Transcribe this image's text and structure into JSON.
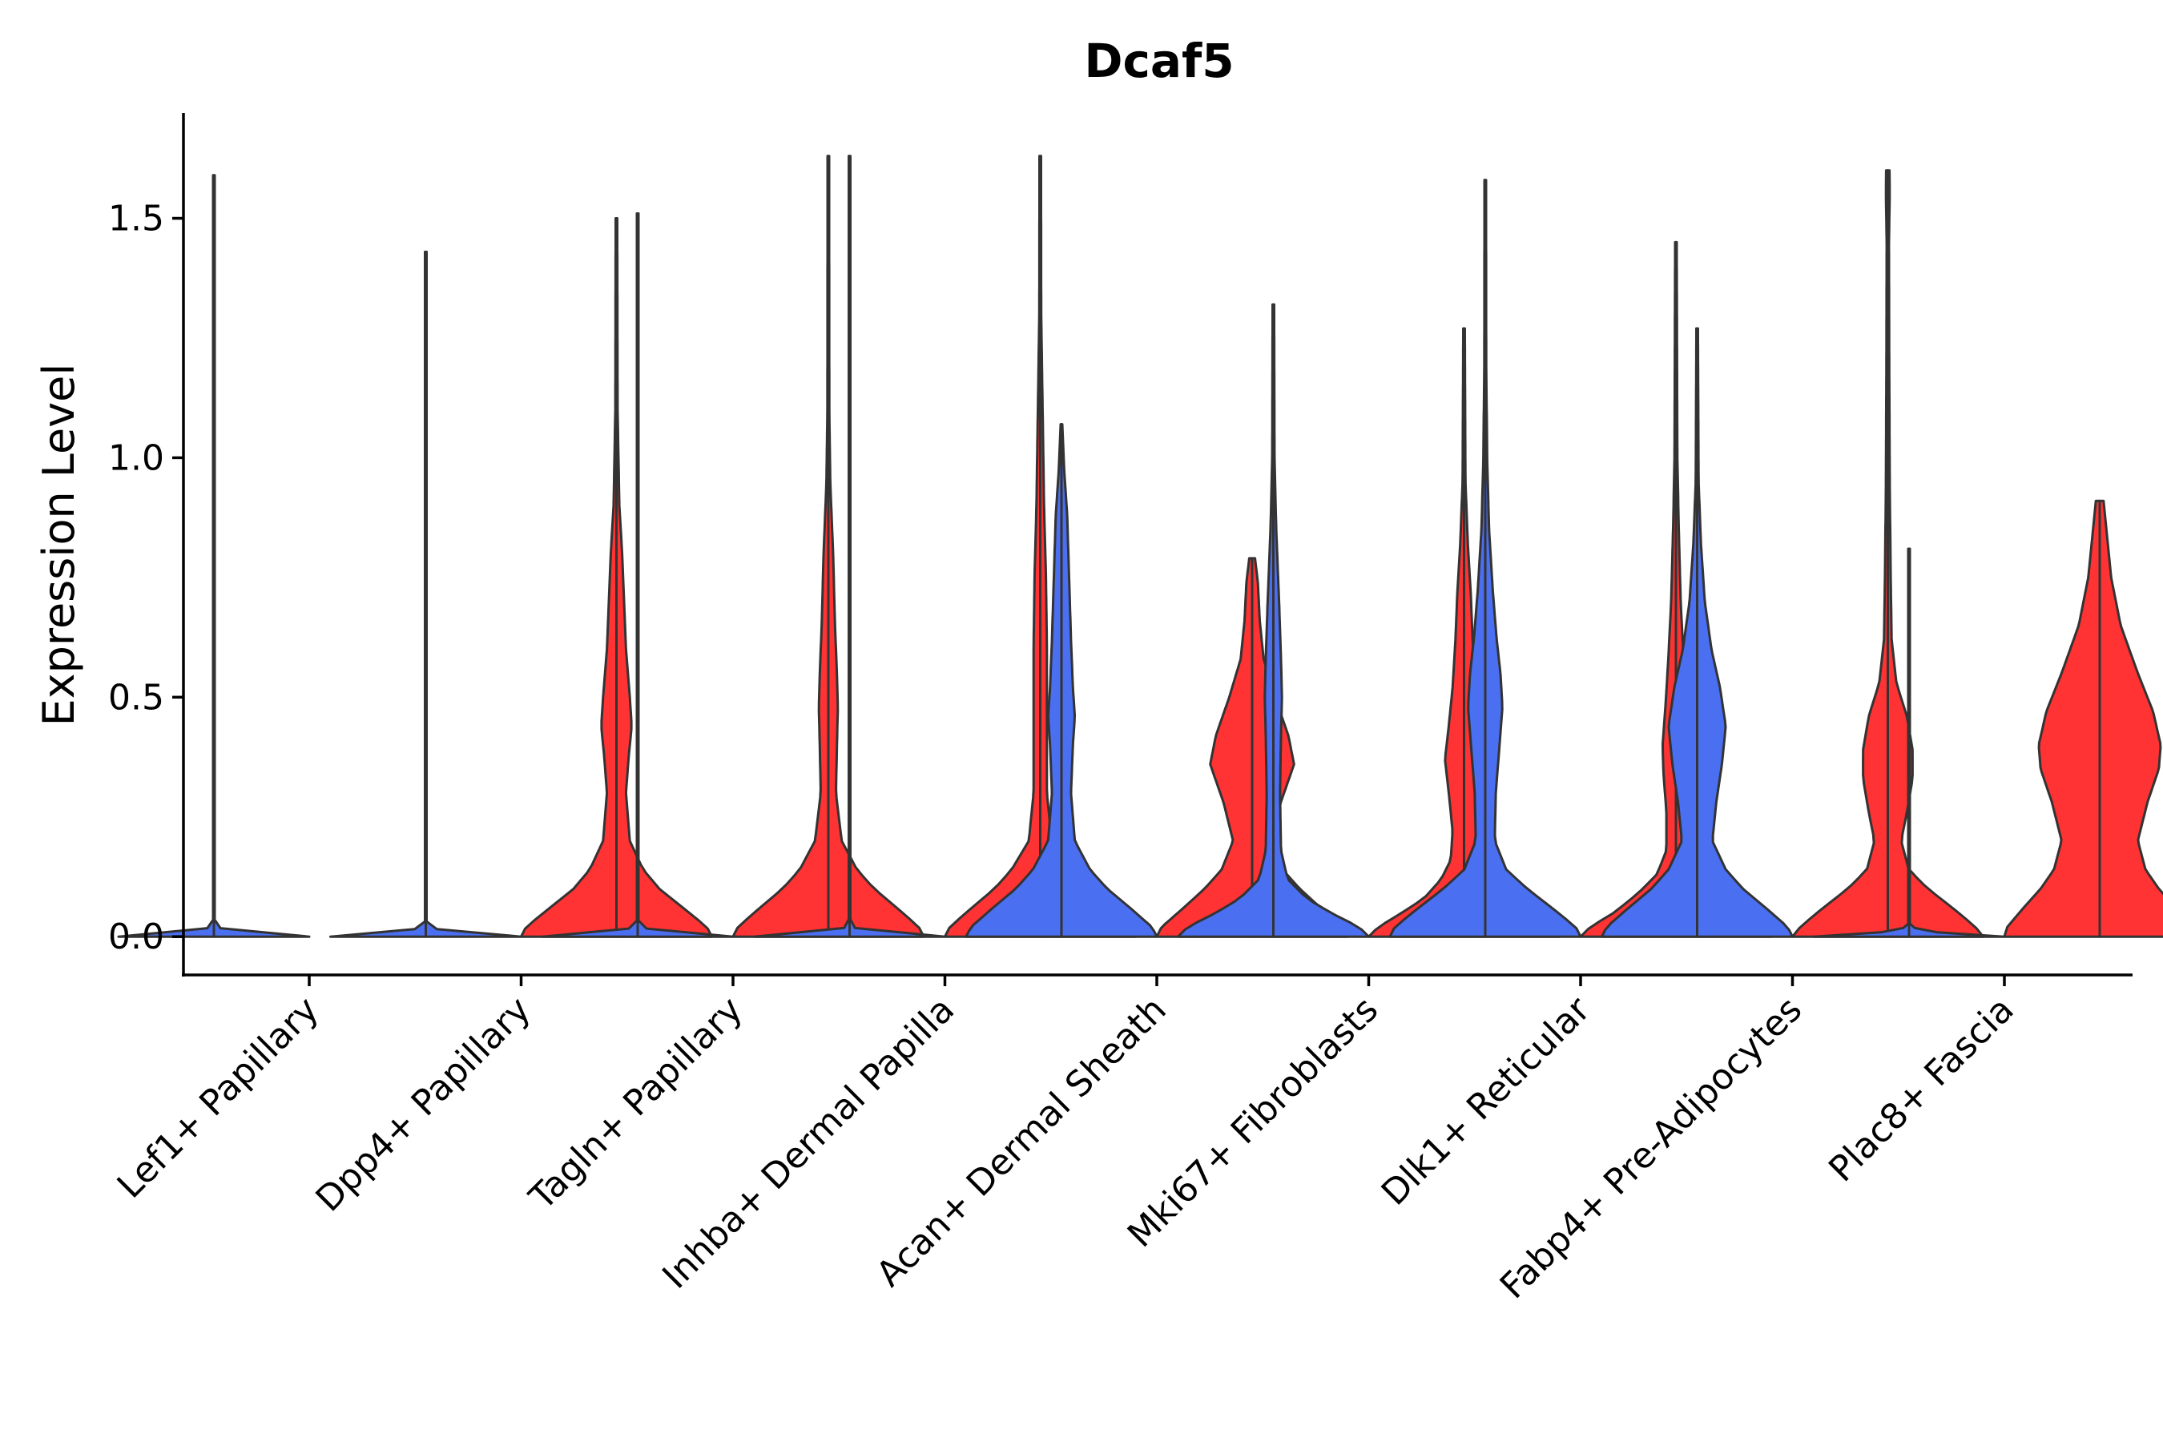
{
  "chart_data": {
    "type": "violin",
    "title": "Dcaf5",
    "xlabel": "",
    "ylabel": "Expression Level",
    "ylim": [
      -0.08,
      1.72
    ],
    "yticks": [
      0.0,
      0.5,
      1.0,
      1.5
    ],
    "ytick_labels": [
      "0.0",
      "0.5",
      "1.0",
      "1.5"
    ],
    "split_colors": {
      "left": "#4a6ff0",
      "right": "#ff3333"
    },
    "categories": [
      "Lef1+ Papillary",
      "Dpp4+ Papillary",
      "Tagln+ Papillary",
      "Inhba+ Dermal Papilla",
      "Acan+ Dermal Sheath",
      "Mki67+ Fibroblasts",
      "Dlk1+ Reticular",
      "Fabp4+ Pre-Adipocytes",
      "Plac8+ Fascia"
    ],
    "groups": [
      {
        "left": {
          "max": 1.59,
          "profile": [
            [
              0,
              1
            ],
            [
              0.005,
              0.4
            ],
            [
              0.02,
              0.008
            ],
            [
              0.6,
              0.008
            ],
            [
              1.59,
              0.008
            ]
          ]
        },
        "right": null
      },
      {
        "left": {
          "max": 1.43,
          "profile": [
            [
              0,
              1
            ],
            [
              0.005,
              0.4
            ],
            [
              0.02,
              0.008
            ],
            [
              0.5,
              0.008
            ],
            [
              1.43,
              0.008
            ]
          ]
        },
        "right": {
          "max": 1.5,
          "profile": [
            [
              0,
              1
            ],
            [
              0.02,
              0.95
            ],
            [
              0.06,
              0.7
            ],
            [
              0.1,
              0.45
            ],
            [
              0.14,
              0.28
            ],
            [
              0.2,
              0.14
            ],
            [
              0.3,
              0.1
            ],
            [
              0.38,
              0.13
            ],
            [
              0.44,
              0.16
            ],
            [
              0.5,
              0.14
            ],
            [
              0.6,
              0.1
            ],
            [
              0.7,
              0.08
            ],
            [
              0.8,
              0.06
            ],
            [
              0.9,
              0.03
            ],
            [
              1.1,
              0.012
            ],
            [
              1.5,
              0.008
            ]
          ]
        }
      },
      {
        "left": {
          "max": 1.51,
          "profile": [
            [
              0,
              1
            ],
            [
              0.005,
              0.4
            ],
            [
              0.02,
              0.008
            ],
            [
              0.5,
              0.008
            ],
            [
              1.51,
              0.008
            ]
          ]
        },
        "right": {
          "max": 1.63,
          "profile": [
            [
              0,
              1
            ],
            [
              0.02,
              0.95
            ],
            [
              0.06,
              0.72
            ],
            [
              0.1,
              0.48
            ],
            [
              0.14,
              0.3
            ],
            [
              0.2,
              0.14
            ],
            [
              0.3,
              0.08
            ],
            [
              0.4,
              0.09
            ],
            [
              0.48,
              0.1
            ],
            [
              0.55,
              0.09
            ],
            [
              0.65,
              0.07
            ],
            [
              0.8,
              0.05
            ],
            [
              0.95,
              0.02
            ],
            [
              1.1,
              0.01
            ],
            [
              1.63,
              0.008
            ]
          ]
        }
      },
      {
        "left": {
          "max": 1.63,
          "profile": [
            [
              0,
              1
            ],
            [
              0.005,
              0.4
            ],
            [
              0.02,
              0.008
            ],
            [
              0.5,
              0.008
            ],
            [
              1.63,
              0.008
            ]
          ]
        },
        "right": {
          "max": 1.63,
          "profile": [
            [
              0,
              1
            ],
            [
              0.02,
              0.95
            ],
            [
              0.06,
              0.72
            ],
            [
              0.1,
              0.48
            ],
            [
              0.14,
              0.3
            ],
            [
              0.2,
              0.12
            ],
            [
              0.3,
              0.07
            ],
            [
              0.45,
              0.07
            ],
            [
              0.6,
              0.07
            ],
            [
              0.75,
              0.06
            ],
            [
              0.9,
              0.04
            ],
            [
              1.1,
              0.025
            ],
            [
              1.3,
              0.01
            ],
            [
              1.63,
              0.008
            ]
          ]
        }
      },
      {
        "left": {
          "max": 1.07,
          "profile": [
            [
              0,
              1
            ],
            [
              0.02,
              0.95
            ],
            [
              0.06,
              0.72
            ],
            [
              0.1,
              0.48
            ],
            [
              0.14,
              0.3
            ],
            [
              0.2,
              0.14
            ],
            [
              0.3,
              0.1
            ],
            [
              0.4,
              0.12
            ],
            [
              0.46,
              0.14
            ],
            [
              0.52,
              0.12
            ],
            [
              0.62,
              0.1
            ],
            [
              0.75,
              0.08
            ],
            [
              0.88,
              0.06
            ],
            [
              0.97,
              0.03
            ],
            [
              1.07,
              0.008
            ]
          ]
        },
        "right": {
          "max": 0.79,
          "profile": [
            [
              0,
              1
            ],
            [
              0.02,
              0.95
            ],
            [
              0.06,
              0.72
            ],
            [
              0.1,
              0.5
            ],
            [
              0.14,
              0.32
            ],
            [
              0.2,
              0.2
            ],
            [
              0.28,
              0.3
            ],
            [
              0.36,
              0.44
            ],
            [
              0.42,
              0.38
            ],
            [
              0.5,
              0.24
            ],
            [
              0.58,
              0.12
            ],
            [
              0.66,
              0.08
            ],
            [
              0.74,
              0.06
            ],
            [
              0.79,
              0.03
            ]
          ]
        }
      },
      {
        "left": {
          "max": 1.32,
          "profile": [
            [
              0,
              1
            ],
            [
              0.02,
              0.9
            ],
            [
              0.05,
              0.6
            ],
            [
              0.08,
              0.35
            ],
            [
              0.12,
              0.15
            ],
            [
              0.18,
              0.08
            ],
            [
              0.3,
              0.07
            ],
            [
              0.42,
              0.08
            ],
            [
              0.5,
              0.09
            ],
            [
              0.58,
              0.08
            ],
            [
              0.7,
              0.06
            ],
            [
              0.85,
              0.03
            ],
            [
              1.0,
              0.012
            ],
            [
              1.32,
              0.008
            ]
          ]
        },
        "right": {
          "max": 1.27,
          "profile": [
            [
              0,
              1
            ],
            [
              0.02,
              0.9
            ],
            [
              0.05,
              0.65
            ],
            [
              0.08,
              0.42
            ],
            [
              0.12,
              0.24
            ],
            [
              0.16,
              0.14
            ],
            [
              0.22,
              0.12
            ],
            [
              0.3,
              0.16
            ],
            [
              0.37,
              0.2
            ],
            [
              0.44,
              0.16
            ],
            [
              0.52,
              0.12
            ],
            [
              0.62,
              0.09
            ],
            [
              0.72,
              0.07
            ],
            [
              0.82,
              0.04
            ],
            [
              0.95,
              0.015
            ],
            [
              1.27,
              0.008
            ]
          ]
        }
      },
      {
        "left": {
          "max": 1.58,
          "profile": [
            [
              0,
              1
            ],
            [
              0.02,
              0.95
            ],
            [
              0.06,
              0.7
            ],
            [
              0.1,
              0.44
            ],
            [
              0.14,
              0.22
            ],
            [
              0.2,
              0.1
            ],
            [
              0.3,
              0.11
            ],
            [
              0.4,
              0.15
            ],
            [
              0.48,
              0.18
            ],
            [
              0.55,
              0.16
            ],
            [
              0.62,
              0.12
            ],
            [
              0.72,
              0.08
            ],
            [
              0.85,
              0.04
            ],
            [
              1.0,
              0.02
            ],
            [
              1.2,
              0.01
            ],
            [
              1.58,
              0.008
            ]
          ]
        },
        "right": {
          "max": 1.45,
          "profile": [
            [
              0,
              1
            ],
            [
              0.02,
              0.9
            ],
            [
              0.05,
              0.65
            ],
            [
              0.09,
              0.4
            ],
            [
              0.13,
              0.2
            ],
            [
              0.18,
              0.1
            ],
            [
              0.26,
              0.1
            ],
            [
              0.34,
              0.13
            ],
            [
              0.4,
              0.14
            ],
            [
              0.48,
              0.11
            ],
            [
              0.58,
              0.08
            ],
            [
              0.7,
              0.05
            ],
            [
              0.85,
              0.03
            ],
            [
              1.0,
              0.015
            ],
            [
              1.45,
              0.008
            ]
          ]
        }
      },
      {
        "left": {
          "max": 1.27,
          "profile": [
            [
              0,
              1
            ],
            [
              0.02,
              0.95
            ],
            [
              0.06,
              0.72
            ],
            [
              0.1,
              0.48
            ],
            [
              0.14,
              0.3
            ],
            [
              0.2,
              0.16
            ],
            [
              0.28,
              0.2
            ],
            [
              0.36,
              0.26
            ],
            [
              0.44,
              0.3
            ],
            [
              0.52,
              0.24
            ],
            [
              0.6,
              0.15
            ],
            [
              0.7,
              0.08
            ],
            [
              0.82,
              0.04
            ],
            [
              0.95,
              0.015
            ],
            [
              1.27,
              0.008
            ]
          ]
        },
        "right": {
          "max": 1.6,
          "profile": [
            [
              0,
              1
            ],
            [
              0.02,
              0.92
            ],
            [
              0.06,
              0.68
            ],
            [
              0.1,
              0.42
            ],
            [
              0.14,
              0.22
            ],
            [
              0.2,
              0.14
            ],
            [
              0.26,
              0.2
            ],
            [
              0.33,
              0.26
            ],
            [
              0.39,
              0.26
            ],
            [
              0.46,
              0.2
            ],
            [
              0.53,
              0.09
            ],
            [
              0.62,
              0.04
            ],
            [
              0.75,
              0.03
            ],
            [
              0.95,
              0.02
            ],
            [
              1.2,
              0.015
            ],
            [
              1.45,
              0.012
            ],
            [
              1.55,
              0.02
            ],
            [
              1.6,
              0.018
            ]
          ]
        }
      },
      {
        "left": {
          "max": 0.81,
          "profile": [
            [
              0,
              1
            ],
            [
              0.005,
              0.4
            ],
            [
              0.02,
              0.008
            ],
            [
              0.4,
              0.008
            ],
            [
              0.81,
              0.008
            ]
          ]
        },
        "right": {
          "max": 0.91,
          "profile": [
            [
              0,
              1
            ],
            [
              0.02,
              0.97
            ],
            [
              0.06,
              0.8
            ],
            [
              0.1,
              0.62
            ],
            [
              0.14,
              0.48
            ],
            [
              0.2,
              0.4
            ],
            [
              0.28,
              0.5
            ],
            [
              0.35,
              0.62
            ],
            [
              0.4,
              0.64
            ],
            [
              0.47,
              0.56
            ],
            [
              0.55,
              0.4
            ],
            [
              0.65,
              0.22
            ],
            [
              0.75,
              0.12
            ],
            [
              0.85,
              0.07
            ],
            [
              0.91,
              0.04
            ]
          ]
        }
      }
    ]
  }
}
